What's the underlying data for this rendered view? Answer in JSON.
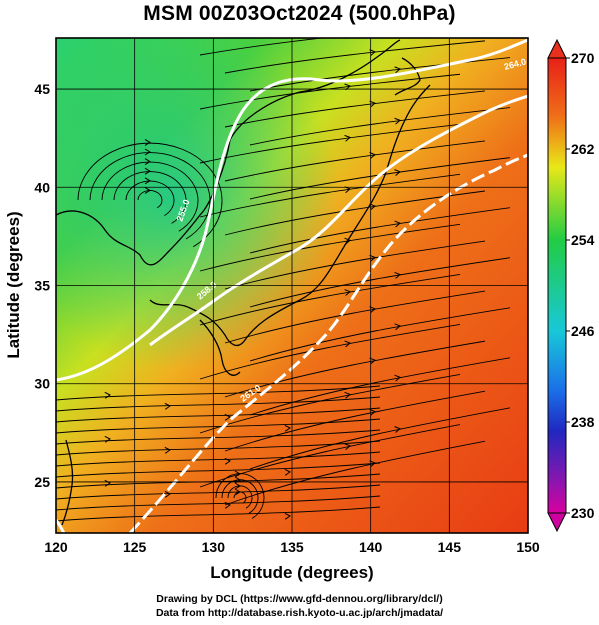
{
  "title": "MSM 00Z03Oct2024 (500.0hPa)",
  "map": {
    "x_axis": {
      "label": "Longitude (degrees)",
      "range": [
        120,
        150
      ],
      "ticks": [
        "120",
        "125",
        "130",
        "135",
        "140",
        "145",
        "150"
      ]
    },
    "y_axis": {
      "label": "Latitude  (degrees)",
      "range": [
        22.4,
        47.6
      ],
      "ticks": [
        "25",
        "30",
        "35",
        "40",
        "45"
      ]
    },
    "field": "temperature",
    "overlay": "wind streamlines",
    "contour_labels": [
      "255.0",
      "258.0",
      "261.0",
      "264.0"
    ]
  },
  "colorbar": {
    "ticks": [
      "270",
      "262",
      "254",
      "246",
      "238",
      "230"
    ],
    "colors": [
      "#d4007e",
      "#2030c8",
      "#1ab8e8",
      "#22cc55",
      "#e8e81a",
      "#f0a020",
      "#e84018"
    ]
  },
  "footer": {
    "line1": "Drawing by DCL (https://www.gfd-dennou.org/library/dcl/)",
    "line2": "Data from http://database.rish.kyoto-u.ac.jp/arch/jmadata/"
  }
}
